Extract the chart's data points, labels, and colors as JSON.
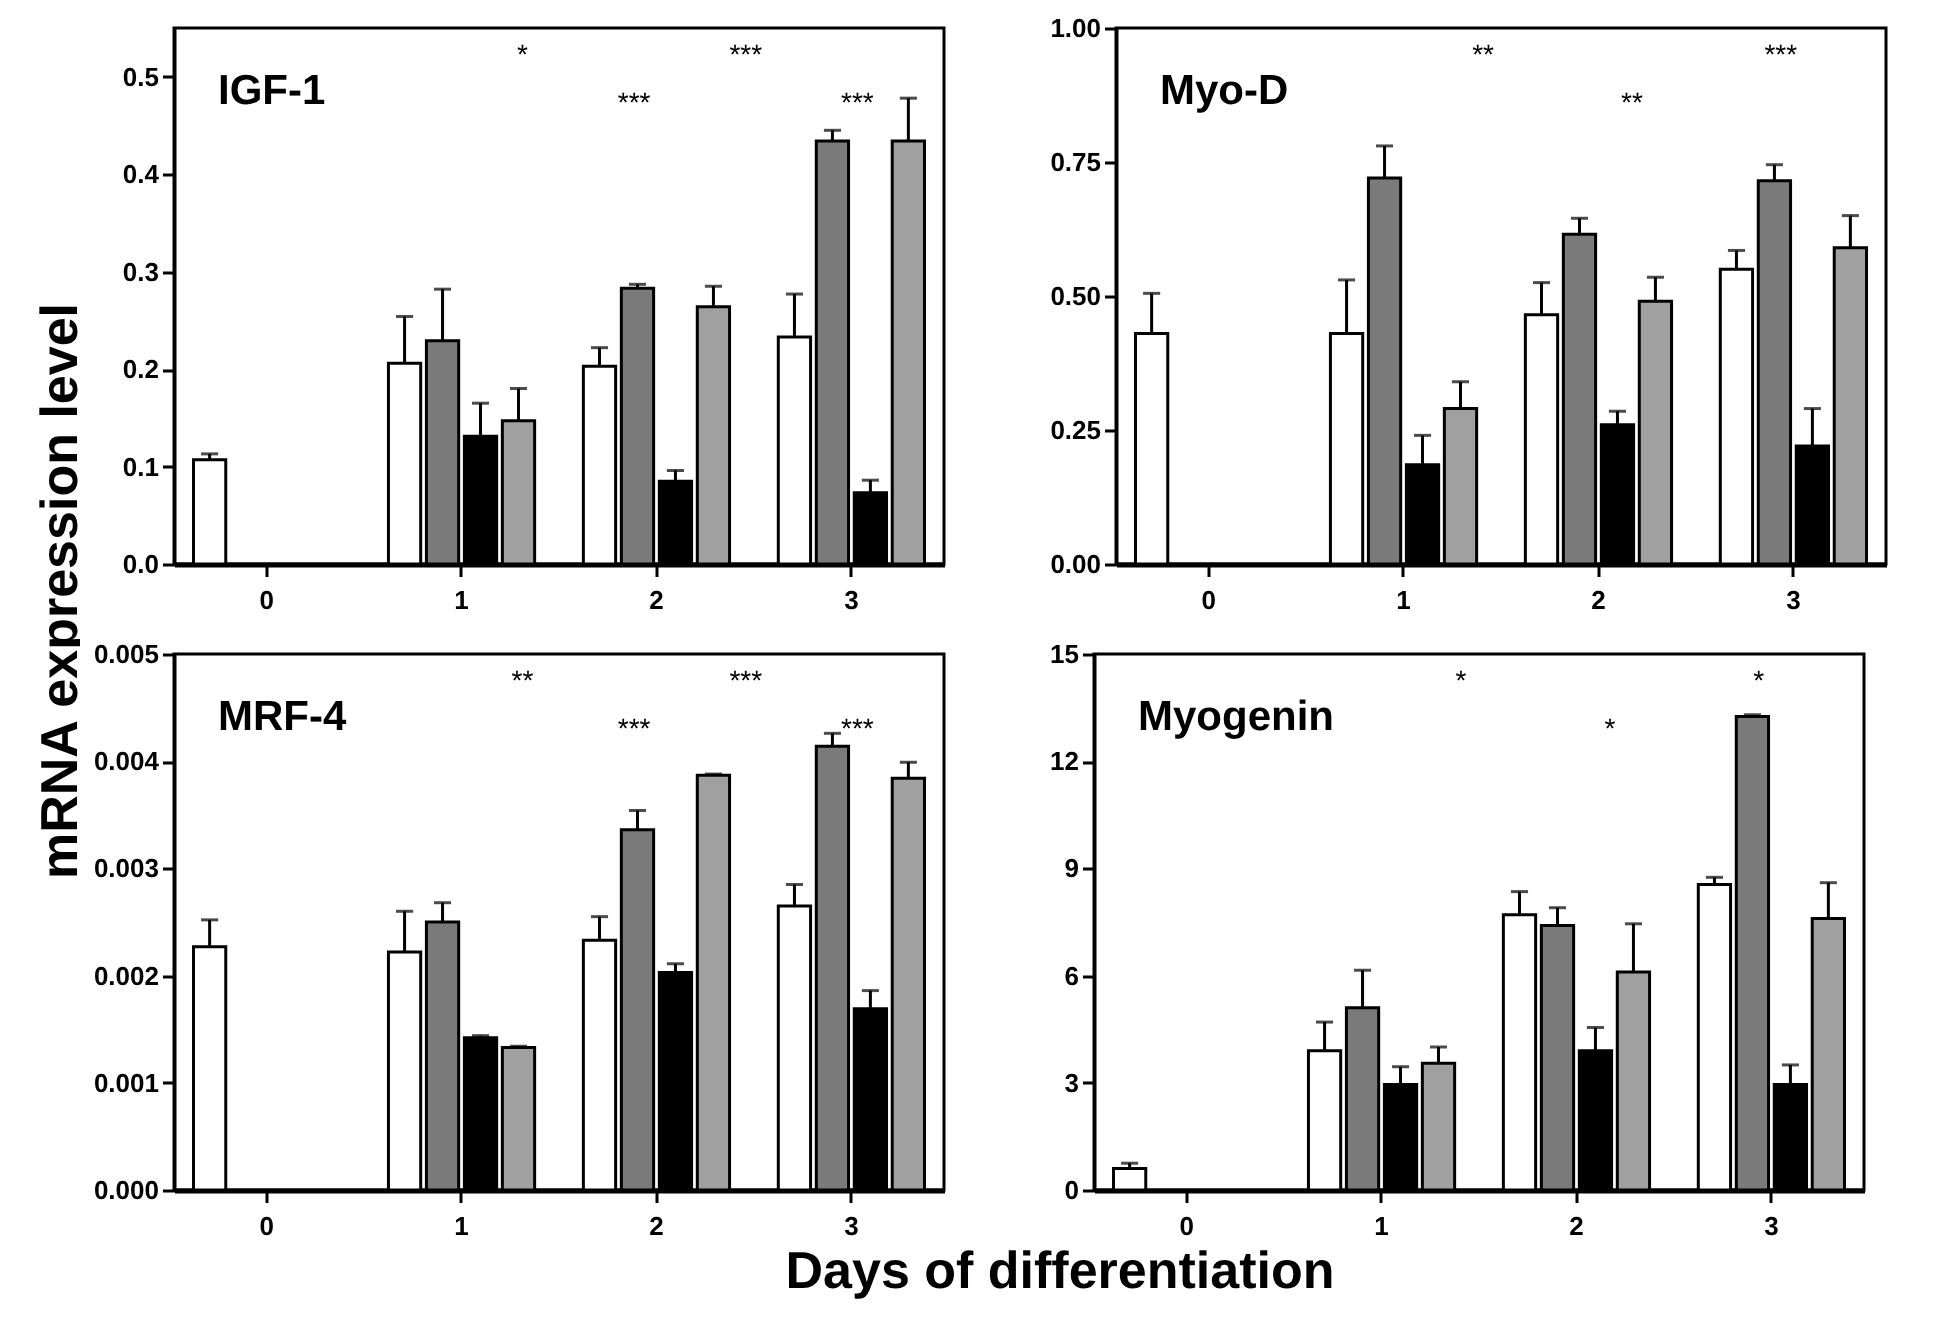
{
  "chart_data": [
    {
      "type": "bar",
      "title": "IGF-1",
      "ylabel": "mRNA expression level",
      "categories": [
        "0",
        "1",
        "2",
        "3"
      ],
      "ylim": [
        0,
        0.55
      ],
      "yticks": [
        {
          "value": 0,
          "label": "0.0"
        },
        0.1,
        0.2,
        0.3,
        0.4,
        0.5
      ],
      "series": [
        {
          "color": "#ffffff",
          "values": [
            0.107,
            0.206,
            0.203,
            0.233
          ],
          "errors": [
            0.006,
            0.048,
            0.019,
            0.044
          ]
        },
        {
          "color": "#7a7a7a",
          "values": [
            null,
            0.229,
            0.283,
            0.434
          ],
          "errors": [
            null,
            0.053,
            0.004,
            0.011
          ]
        },
        {
          "color": "#000000",
          "values": [
            null,
            0.131,
            0.085,
            0.073
          ],
          "errors": [
            null,
            0.034,
            0.011,
            0.013
          ]
        },
        {
          "color": "#a0a0a0",
          "values": [
            null,
            0.147,
            0.264,
            0.434
          ],
          "errors": [
            null,
            0.033,
            0.021,
            0.044
          ]
        }
      ],
      "annotations": [
        "*",
        "***",
        "***",
        "***"
      ],
      "legend": false
    },
    {
      "type": "bar",
      "title": "Myo-D",
      "categories": [
        "0",
        "1",
        "2",
        "3"
      ],
      "ylim": [
        0,
        1
      ],
      "yticks": [
        {
          "value": 0,
          "label": "0.00"
        },
        {
          "value": 0.25,
          "label": "0.25"
        },
        {
          "value": 0.5,
          "label": "0.50"
        },
        {
          "value": 0.75,
          "label": "0.75"
        },
        {
          "value": 1,
          "label": "1.00"
        }
      ],
      "series": [
        {
          "color": "#ffffff",
          "values": [
            0.43,
            0.43,
            0.465,
            0.55
          ],
          "errors": [
            0.075,
            0.1,
            0.06,
            0.035
          ]
        },
        {
          "color": "#7a7a7a",
          "values": [
            null,
            0.72,
            0.615,
            0.715
          ],
          "errors": [
            null,
            0.06,
            0.03,
            0.03
          ]
        },
        {
          "color": "#000000",
          "values": [
            null,
            0.185,
            0.26,
            0.22
          ],
          "errors": [
            null,
            0.055,
            0.025,
            0.07
          ]
        },
        {
          "color": "#a0a0a0",
          "values": [
            null,
            0.29,
            0.49,
            0.59
          ],
          "errors": [
            null,
            0.05,
            0.045,
            0.06
          ]
        }
      ],
      "annotations": [
        "**",
        "**",
        "***"
      ],
      "legend": false
    },
    {
      "type": "bar",
      "title": "MRF-4",
      "xlabel": "Days of differentiation",
      "categories": [
        "0",
        "1",
        "2",
        "3"
      ],
      "ylim": [
        0,
        0.005
      ],
      "yticks": [
        {
          "value": 0,
          "label": "0.000"
        },
        0.001,
        0.002,
        0.003,
        0.004,
        0.005
      ],
      "series": [
        {
          "color": "#ffffff",
          "values": [
            0.00227,
            0.00222,
            0.00233,
            0.00265
          ],
          "errors": [
            0.00025,
            0.00038,
            0.00022,
            0.0002
          ]
        },
        {
          "color": "#7a7a7a",
          "values": [
            null,
            0.0025,
            0.00336,
            0.00414
          ],
          "errors": [
            null,
            0.00018,
            0.00018,
            0.00012
          ]
        },
        {
          "color": "#000000",
          "values": [
            null,
            0.00142,
            0.00203,
            0.00169
          ],
          "errors": [
            null,
            2e-05,
            8e-05,
            0.00017
          ]
        },
        {
          "color": "#a0a0a0",
          "values": [
            null,
            0.00133,
            0.00387,
            0.00384
          ],
          "errors": [
            null,
            1e-05,
            1e-05,
            0.00015
          ]
        }
      ],
      "annotations": [
        "**",
        "***",
        "***",
        "***"
      ],
      "legend": false
    },
    {
      "type": "bar",
      "title": "Myogenin",
      "categories": [
        "0",
        "1",
        "2",
        "3"
      ],
      "ylim": [
        0,
        15
      ],
      "yticks": [
        0,
        3,
        6,
        9,
        12,
        15
      ],
      "series": [
        {
          "color": "#ffffff",
          "values": [
            0.6,
            3.9,
            7.7,
            8.55
          ],
          "errors": [
            0.15,
            0.8,
            0.65,
            0.2
          ]
        },
        {
          "color": "#7a7a7a",
          "values": [
            null,
            5.1,
            7.4,
            13.25
          ],
          "errors": [
            null,
            1.05,
            0.5,
            0.05
          ]
        },
        {
          "color": "#000000",
          "values": [
            null,
            2.95,
            3.9,
            2.95
          ],
          "errors": [
            null,
            0.5,
            0.65,
            0.55
          ]
        },
        {
          "color": "#a0a0a0",
          "values": [
            null,
            3.55,
            6.1,
            7.6
          ],
          "errors": [
            null,
            0.45,
            1.35,
            1.0
          ]
        }
      ],
      "annotations": [
        "*",
        "*",
        "*"
      ],
      "legend": false
    }
  ]
}
